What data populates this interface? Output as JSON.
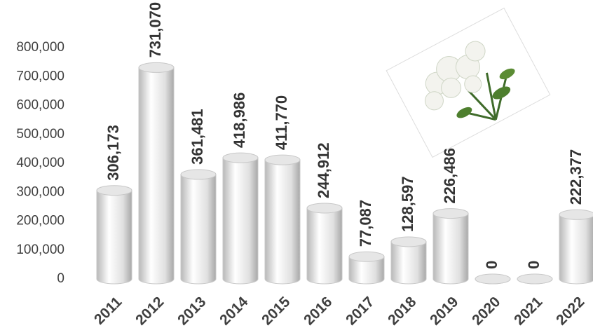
{
  "chart_data": {
    "type": "bar",
    "categories": [
      "2011",
      "2012",
      "2013",
      "2014",
      "2015",
      "2016",
      "2017",
      "2018",
      "2019",
      "2020",
      "2021",
      "2022"
    ],
    "values": [
      306173,
      731070,
      361481,
      418986,
      411770,
      244912,
      77087,
      128597,
      226486,
      0,
      0,
      222377
    ],
    "value_labels": [
      "306,173",
      "731,070",
      "361,481",
      "418,986",
      "411,770",
      "244,912",
      "77,087",
      "128,597",
      "226,486",
      "0",
      "0",
      "222,377"
    ],
    "color": "#e6e6e6",
    "ylim": [
      0,
      800000
    ],
    "yticks": [
      0,
      {
        "value": 100000,
        "label": "100,000"
      },
      {
        "value": 200000,
        "label": "200,000"
      },
      {
        "value": 300000,
        "label": "300,000"
      },
      {
        "value": 400000,
        "label": "400,000"
      },
      {
        "value": 500000,
        "label": "500,000"
      },
      {
        "value": 600000,
        "label": "600,000"
      },
      {
        "value": 700000,
        "label": "700,000"
      },
      {
        "value": {
          "value": 800000
        },
        "label": "800,000"
      }
    ]
  }
}
